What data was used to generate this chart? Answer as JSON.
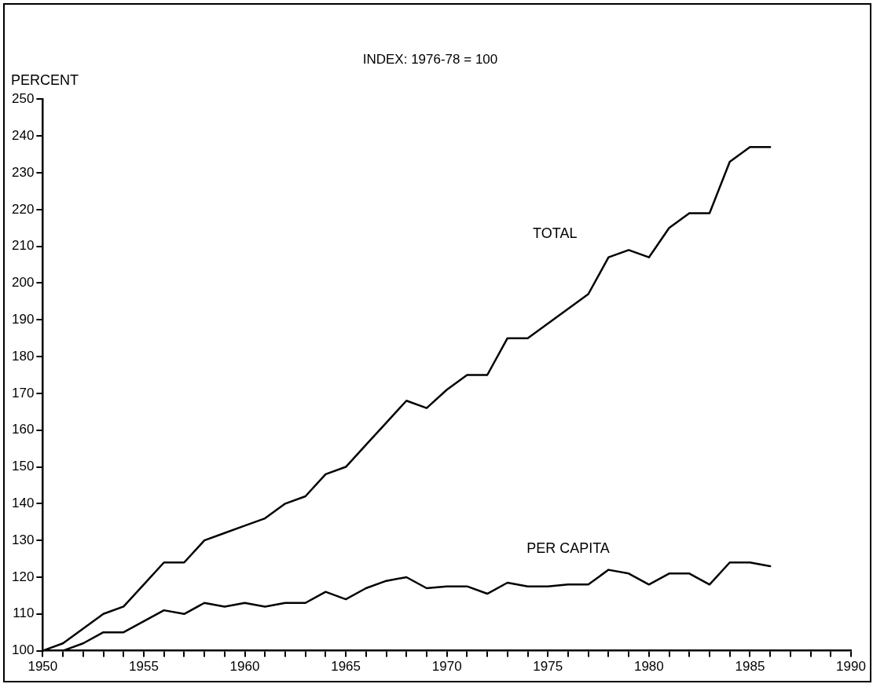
{
  "chart_data": {
    "type": "line",
    "title": "INDEX: 1976-78 = 100",
    "ylabel": "PERCENT",
    "x": [
      1950,
      1951,
      1952,
      1953,
      1954,
      1955,
      1956,
      1957,
      1958,
      1959,
      1960,
      1961,
      1962,
      1963,
      1964,
      1965,
      1966,
      1967,
      1968,
      1969,
      1970,
      1971,
      1972,
      1973,
      1974,
      1975,
      1976,
      1977,
      1978,
      1979,
      1980,
      1981,
      1982,
      1983,
      1984,
      1985,
      1986
    ],
    "series": [
      {
        "name": "TOTAL",
        "color": "#000000",
        "values": [
          100,
          102,
          106,
          110,
          112,
          118,
          124,
          124,
          130,
          132,
          134,
          136,
          140,
          142,
          148,
          150,
          156,
          162,
          168,
          166,
          171,
          175,
          175,
          185,
          185,
          189,
          193,
          197,
          207,
          209,
          207,
          215,
          219,
          219,
          233,
          237,
          237
        ]
      },
      {
        "name": "PER CAPITA",
        "color": "#000000",
        "values": [
          100,
          100,
          102,
          105,
          105,
          108,
          111,
          110,
          113,
          112,
          113,
          112,
          113,
          113,
          116,
          114,
          117,
          119,
          120,
          117,
          117.5,
          117.5,
          115.5,
          118.5,
          117.5,
          117.5,
          118,
          118,
          122,
          121,
          118,
          121,
          121,
          118,
          124,
          124,
          123
        ]
      }
    ],
    "xlim": [
      1950,
      1990
    ],
    "xticks": [
      1950,
      {
        "value": 1951,
        "label": null
      },
      {
        "value": 1952,
        "label": null
      },
      {
        "value": 1953,
        "label": null
      },
      {
        "value": 1954,
        "label": null
      },
      1955,
      {
        "value": 1956,
        "label": null
      },
      {
        "value": 1957,
        "label": null
      },
      {
        "value": 1958,
        "label": null
      },
      {
        "value": 1959,
        "label": null
      },
      1960,
      {
        "value": 1961,
        "label": null
      },
      {
        "value": 1962,
        "label": null
      },
      {
        "value": 1963,
        "label": null
      },
      {
        "value": 1964,
        "label": null
      },
      1965,
      {
        "value": 1966,
        "label": null
      },
      {
        "value": 1967,
        "label": null
      },
      {
        "value": 1968,
        "label": null
      },
      {
        "value": 1969,
        "label": null
      },
      1970,
      {
        "value": 1971,
        "label": null
      },
      {
        "value": 1972,
        "label": null
      },
      {
        "value": 1973,
        "label": null
      },
      {
        "value": 1974,
        "label": null
      },
      1975,
      {
        "value": 1976,
        "label": null
      },
      {
        "value": 1977,
        "label": null
      },
      {
        "value": 1978,
        "label": null
      },
      {
        "value": 1979,
        "label": null
      },
      1980,
      {
        "value": 1981,
        "label": null
      },
      {
        "value": 1982,
        "label": null
      },
      {
        "value": 1983,
        "label": null
      },
      {
        "value": 1984,
        "label": null
      },
      1985,
      {
        "value": 1986,
        "label": null
      },
      {
        "value": 1987,
        "label": null
      },
      {
        "value": 1988,
        "label": null
      },
      {
        "value": 1989,
        "label": null
      },
      1990
    ],
    "ylim": [
      100,
      250
    ],
    "yticks": [
      100,
      110,
      120,
      130,
      140,
      150,
      160,
      170,
      180,
      190,
      200,
      210,
      220,
      230,
      240,
      250
    ],
    "grid": false,
    "legend": false,
    "marker": "none",
    "line_style": "solid"
  }
}
